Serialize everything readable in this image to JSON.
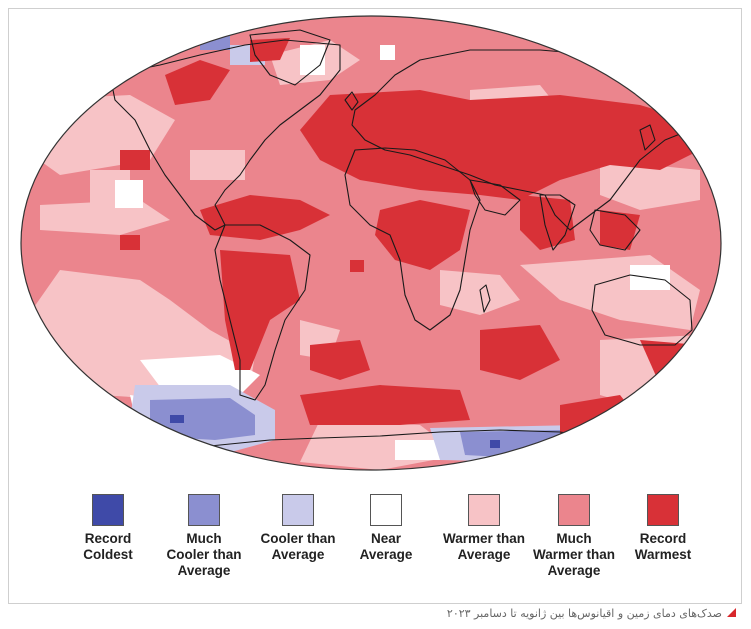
{
  "colors": {
    "record_coldest": "#3f4aa8",
    "much_cooler": "#8b8fd0",
    "cooler": "#c9caea",
    "near": "#ffffff",
    "warmer": "#f7c3c6",
    "much_warmer": "#eb858d",
    "record_warmest": "#d83137",
    "land_outline": "#1a1a1a"
  },
  "legend": [
    {
      "label": "Record\nColdest",
      "color": "#3f4aa8"
    },
    {
      "label": "Much\nCooler than\nAverage",
      "color": "#8b8fd0"
    },
    {
      "label": "Cooler than\nAverage",
      "color": "#c9caea"
    },
    {
      "label": "Near\nAverage",
      "color": "#ffffff"
    },
    {
      "label": "Warmer than\nAverage",
      "color": "#f7c3c6"
    },
    {
      "label": "Much\nWarmer than\nAverage",
      "color": "#eb858d"
    },
    {
      "label": "Record\nWarmest",
      "color": "#d83137"
    }
  ],
  "caption": "صدک‌های دمای زمین و اقیانوس‌ها بین ژانویه تا دسامبر ۲۰۲۳"
}
